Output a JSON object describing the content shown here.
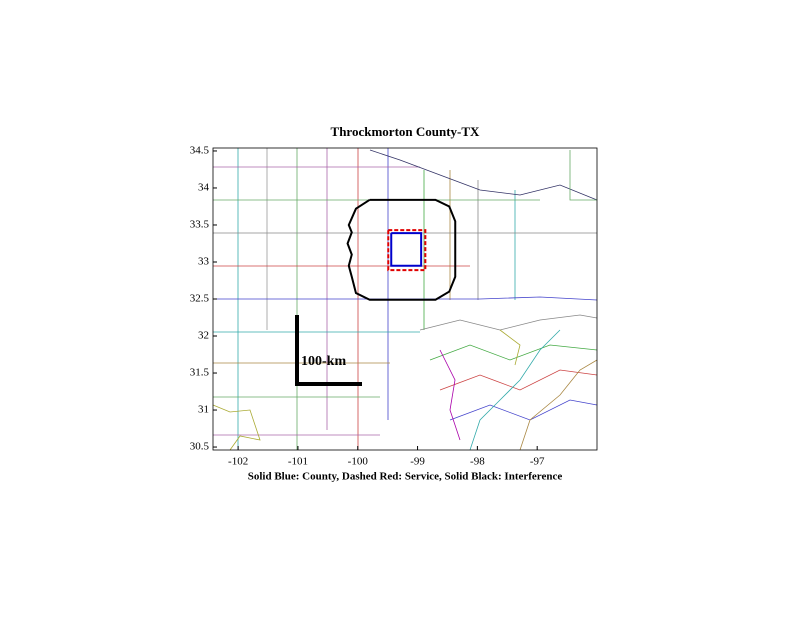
{
  "chart_data": {
    "type": "map",
    "title": "Throckmorton County-TX",
    "caption": "Solid Blue: County, Dashed Red: Service, Solid Black: Interference",
    "scale_label": "100-km",
    "xlim": [
      -102.42,
      -96.0
    ],
    "ylim": [
      30.46,
      34.54
    ],
    "xticks": [
      -102,
      -101,
      -100,
      -99,
      -98,
      -97
    ],
    "yticks": [
      30.5,
      31,
      31.5,
      32,
      32.5,
      33,
      33.5,
      34,
      34.5
    ],
    "outlines": [
      {
        "color": "#000000",
        "dashed": false,
        "lon": [
          -99.8,
          -98.7,
          -98.47,
          -98.37,
          -98.37,
          -98.47,
          -98.7,
          -99.8,
          -100.03,
          -100.1,
          -100.15,
          -100.1,
          -100.17,
          -100.1,
          -100.15,
          -100.03,
          -99.8
        ],
        "lat": [
          33.84,
          33.84,
          33.75,
          33.55,
          32.8,
          32.6,
          32.49,
          32.49,
          32.58,
          32.8,
          32.95,
          33.1,
          33.25,
          33.4,
          33.5,
          33.72,
          33.84
        ]
      },
      {
        "color": "#e00000",
        "dashed": true,
        "lon": [
          -99.49,
          -98.87,
          -98.87,
          -99.49,
          -99.49
        ],
        "lat": [
          33.43,
          33.43,
          32.89,
          32.89,
          33.43
        ]
      },
      {
        "color": "#0000cc",
        "dashed": false,
        "lon": [
          -99.44,
          -98.94,
          -98.94,
          -99.44,
          -99.44
        ],
        "lat": [
          33.39,
          33.39,
          32.95,
          32.95,
          33.39
        ]
      }
    ]
  }
}
